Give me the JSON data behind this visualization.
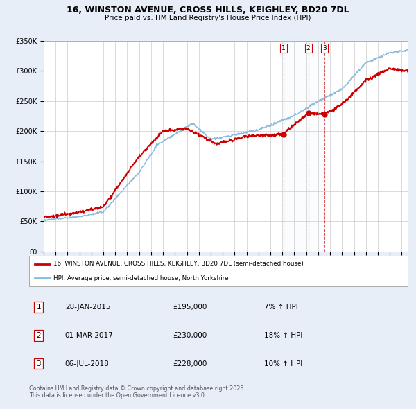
{
  "title_line1": "16, WINSTON AVENUE, CROSS HILLS, KEIGHLEY, BD20 7DL",
  "title_line2": "Price paid vs. HM Land Registry's House Price Index (HPI)",
  "red_label": "16, WINSTON AVENUE, CROSS HILLS, KEIGHLEY, BD20 7DL (semi-detached house)",
  "blue_label": "HPI: Average price, semi-detached house, North Yorkshire",
  "sales": [
    {
      "num": 1,
      "date": "28-JAN-2015",
      "date_x": 2015.08,
      "price": 195000,
      "pct": "7%",
      "dir": "↑"
    },
    {
      "num": 2,
      "date": "01-MAR-2017",
      "date_x": 2017.17,
      "price": 230000,
      "pct": "18%",
      "dir": "↑"
    },
    {
      "num": 3,
      "date": "06-JUL-2018",
      "date_x": 2018.51,
      "price": 228000,
      "pct": "10%",
      "dir": "↑"
    }
  ],
  "footnote1": "Contains HM Land Registry data © Crown copyright and database right 2025.",
  "footnote2": "This data is licensed under the Open Government Licence v3.0.",
  "ylim": [
    0,
    350000
  ],
  "xlim": [
    1995.0,
    2025.5
  ],
  "bg_color": "#e8eef8",
  "plot_bg": "#ffffff",
  "grid_color": "#cccccc",
  "red_color": "#cc0000",
  "blue_color": "#88bbdd"
}
